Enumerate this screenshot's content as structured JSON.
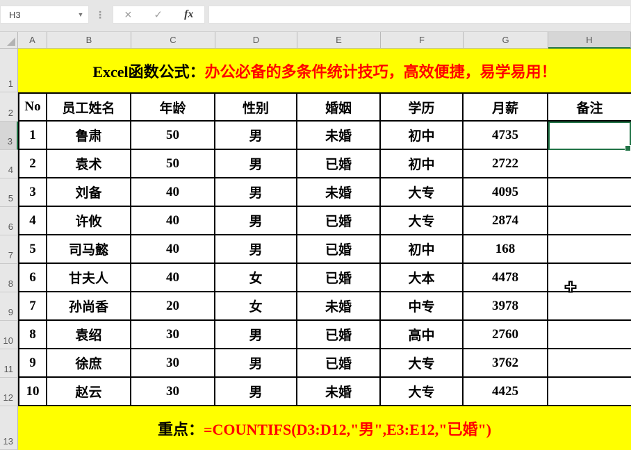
{
  "toolbar": {
    "name_box_value": "H3",
    "cancel_icon": "✕",
    "enter_icon": "✓",
    "fx_icon": "fx",
    "formula_bar_value": ""
  },
  "sheet": {
    "columns": [
      "A",
      "B",
      "C",
      "D",
      "E",
      "F",
      "G",
      "H"
    ],
    "rows": [
      "1",
      "2",
      "3",
      "4",
      "5",
      "6",
      "7",
      "8",
      "9",
      "10",
      "11",
      "12",
      "13"
    ],
    "selected_cell": "H3",
    "selected_column": "H",
    "selected_row": "3"
  },
  "top_banner": {
    "label": "Excel函数公式：",
    "highlight": "办公必备的多条件统计技巧，高效便捷，易学易用！"
  },
  "bottom_banner": {
    "label": "重点：",
    "formula": "=COUNTIFS(D3:D12,\"男\",E3:E12,\"已婚\")"
  },
  "table": {
    "headers": [
      "No",
      "员工姓名",
      "年龄",
      "性别",
      "婚姻",
      "学历",
      "月薪",
      "备注"
    ],
    "rows": [
      [
        "1",
        "鲁肃",
        "50",
        "男",
        "未婚",
        "初中",
        "4735",
        ""
      ],
      [
        "2",
        "袁术",
        "50",
        "男",
        "已婚",
        "初中",
        "2722",
        ""
      ],
      [
        "3",
        "刘备",
        "40",
        "男",
        "未婚",
        "大专",
        "4095",
        ""
      ],
      [
        "4",
        "许攸",
        "40",
        "男",
        "已婚",
        "大专",
        "2874",
        ""
      ],
      [
        "5",
        "司马懿",
        "40",
        "男",
        "已婚",
        "初中",
        "168",
        ""
      ],
      [
        "6",
        "甘夫人",
        "40",
        "女",
        "已婚",
        "大本",
        "4478",
        ""
      ],
      [
        "7",
        "孙尚香",
        "20",
        "女",
        "未婚",
        "中专",
        "3978",
        ""
      ],
      [
        "8",
        "袁绍",
        "30",
        "男",
        "已婚",
        "高中",
        "2760",
        ""
      ],
      [
        "9",
        "徐庶",
        "30",
        "男",
        "已婚",
        "大专",
        "3762",
        ""
      ],
      [
        "10",
        "赵云",
        "30",
        "男",
        "未婚",
        "大专",
        "4425",
        ""
      ]
    ]
  },
  "colors": {
    "banner_bg": "#FFFF00",
    "accent_red": "#FF0000",
    "selection_green": "#217346"
  }
}
